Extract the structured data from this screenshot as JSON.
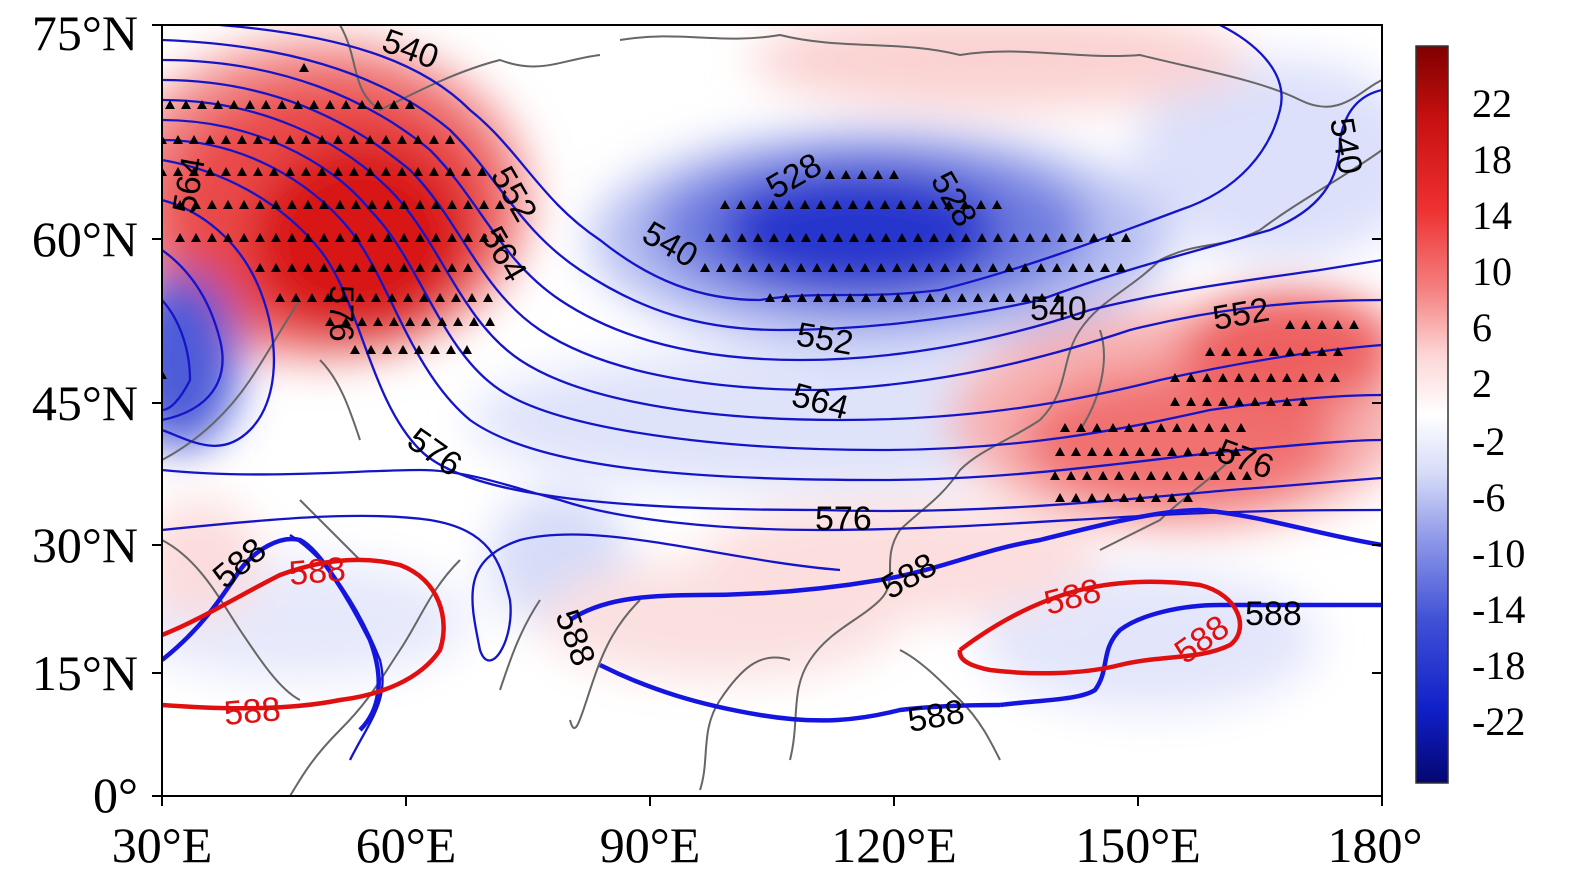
{
  "chart_data": {
    "type": "map",
    "x_ticks": [
      "30°E",
      "60°E",
      "90°E",
      "120°E",
      "150°E",
      "180°"
    ],
    "y_ticks": [
      "75°N",
      "60°N",
      "45°N",
      "30°N",
      "15°N",
      "0°"
    ],
    "colorbar": {
      "labels": [
        "22",
        "18",
        "14",
        "10",
        "6",
        "2",
        "-2",
        "-6",
        "-10",
        "-14",
        "-18",
        "-22"
      ],
      "colors": [
        "#7f0000",
        "#a50000",
        "#c81010",
        "#e52222",
        "#f25050",
        "#f78686",
        "#fbbaba",
        "#fde4e4",
        "#ffffff",
        "#e3e6fb",
        "#c2c8f4",
        "#9aa3ea",
        "#7381e0",
        "#4d5cd8",
        "#2a3ad0",
        "#101fc4",
        "#0a10a0",
        "#050672"
      ]
    },
    "contour_labels": {
      "blue": [
        "540",
        "552",
        "564",
        "528",
        "528",
        "540",
        "540",
        "540",
        "552",
        "552",
        "564",
        "576",
        "564",
        "576",
        "576",
        "576",
        "588",
        "588",
        "588",
        "588",
        "588"
      ],
      "red": [
        "588",
        "588",
        "588",
        "588"
      ]
    },
    "colors": {
      "blue_contour": "#1515c8",
      "red_contour": "#e01010",
      "coast": "#666666",
      "frame": "#000000"
    }
  }
}
